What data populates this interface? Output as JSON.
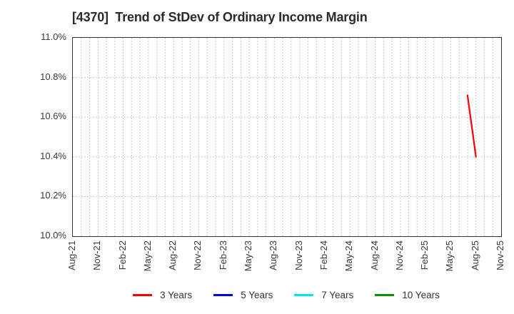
{
  "header": {
    "title": "[4370]  Trend of StDev of Ordinary Income Margin"
  },
  "chart_data": {
    "type": "line",
    "title": "[4370]  Trend of StDev of Ordinary Income Margin",
    "xlabel": "",
    "ylabel": "",
    "ylim": [
      10.0,
      11.0
    ],
    "y_ticks": [
      "10.0%",
      "10.2%",
      "10.4%",
      "10.6%",
      "10.8%",
      "11.0%"
    ],
    "x_ticks": [
      "Aug-21",
      "Nov-21",
      "Feb-22",
      "May-22",
      "Aug-22",
      "Nov-22",
      "Feb-23",
      "May-23",
      "Aug-23",
      "Nov-23",
      "Feb-24",
      "May-24",
      "Aug-24",
      "Nov-24",
      "Feb-25",
      "May-25",
      "Aug-25",
      "Nov-25"
    ],
    "x_range_months": [
      "Aug-21",
      "Nov-25"
    ],
    "grid": "dotted; vertical line every month, horizontal line every 0.2%",
    "grid_color": "#b8b8b8",
    "legend_position": "bottom center",
    "series": [
      {
        "name": "3 Years",
        "color": "#ff0000",
        "points": [
          [
            "Jul-25",
            10.71
          ],
          [
            "Aug-25",
            10.4
          ]
        ]
      },
      {
        "name": "5 Years",
        "color": "#0000ee",
        "points": []
      },
      {
        "name": "7 Years",
        "color": "#00e6e6",
        "points": []
      },
      {
        "name": "10 Years",
        "color": "#0f8f0f",
        "points": []
      }
    ]
  }
}
